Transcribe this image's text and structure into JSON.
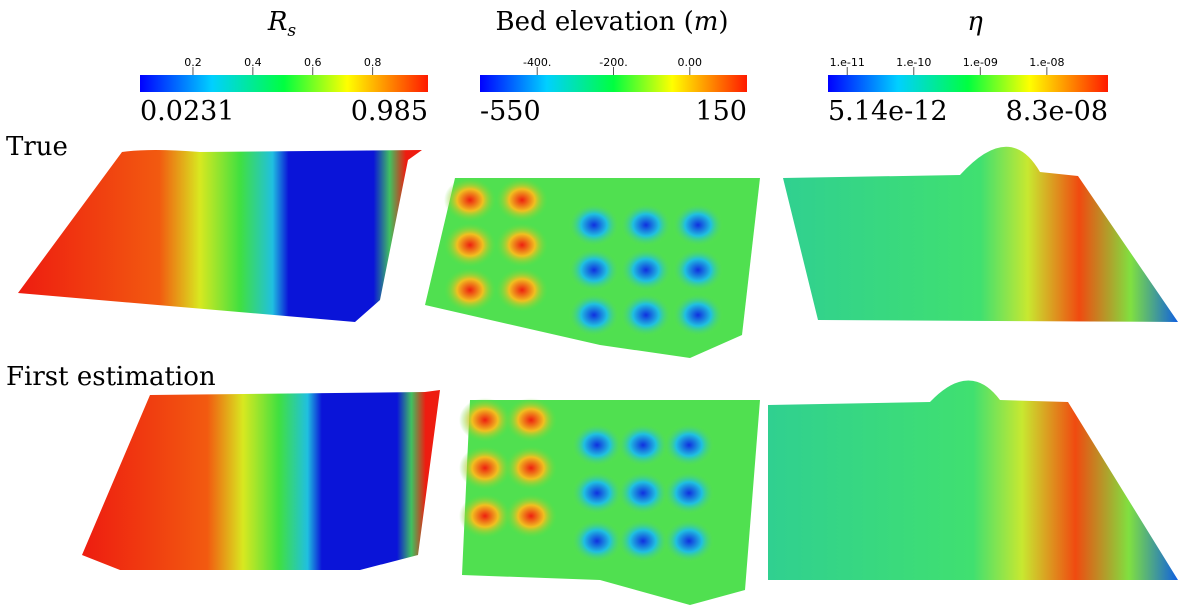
{
  "columns": [
    {
      "title": [
        "R",
        "s"
      ],
      "colorbar": {
        "scale": "linear",
        "range": [
          {
            "value": 0.0231,
            "label": "0.0231"
          },
          {
            "value": 0.985,
            "label": "0.985"
          }
        ],
        "ticks": [
          0.2,
          0.4,
          0.6,
          0.8
        ]
      }
    },
    {
      "title": [
        "Bed elevation (",
        "m",
        ")"
      ],
      "colorbar": {
        "scale": "linear",
        "range": [
          {
            "value": -550,
            "label": "-550"
          },
          {
            "value": 150,
            "label": "150"
          }
        ],
        "ticks": [
          {
            "value": -400,
            "label": "-400."
          },
          {
            "value": -200,
            "label": "-200."
          },
          {
            "value": 0,
            "label": "0.00"
          }
        ]
      }
    },
    {
      "title": [
        "η"
      ],
      "colorbar": {
        "scale": "log",
        "range": [
          {
            "value": 5.14e-12,
            "label": "5.14e-12"
          },
          {
            "value": 8.3e-08,
            "label": "8.3e-08"
          }
        ],
        "ticks": [
          {
            "value": 1e-11,
            "label": "1.e-11"
          },
          {
            "value": 1e-10,
            "label": "1.e-10"
          },
          {
            "value": 1e-09,
            "label": "1.e-09"
          },
          {
            "value": 1e-08,
            "label": "1.e-08"
          }
        ]
      }
    }
  ],
  "rows": [
    "True",
    "First estimation"
  ]
}
